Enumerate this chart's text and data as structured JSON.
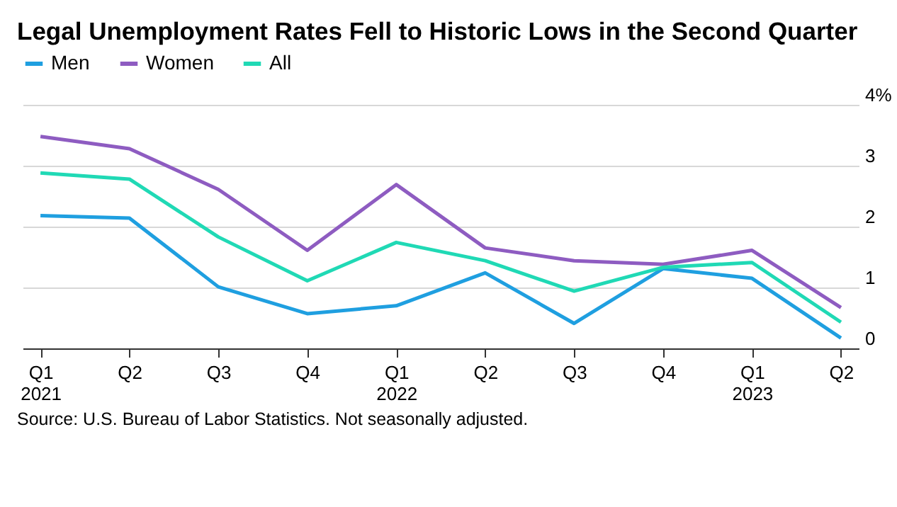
{
  "chart_data": {
    "type": "line",
    "title": "Legal Unemployment Rates Fell to Historic Lows in the Second Quarter",
    "categories": [
      "Q1\n2021",
      "Q2",
      "Q3",
      "Q4",
      "Q1\n2022",
      "Q2",
      "Q3",
      "Q4",
      "Q1\n2023",
      "Q2"
    ],
    "series": [
      {
        "name": "Men",
        "color": "#1f9fe0",
        "values": [
          2.18,
          2.14,
          1.01,
          0.57,
          0.7,
          1.24,
          0.41,
          1.31,
          1.15,
          0.17
        ]
      },
      {
        "name": "Women",
        "color": "#8e5cc1",
        "values": [
          3.48,
          3.28,
          2.61,
          1.61,
          2.69,
          1.65,
          1.44,
          1.38,
          1.61,
          0.67
        ]
      },
      {
        "name": "All",
        "color": "#20d9b5",
        "values": [
          2.88,
          2.78,
          1.83,
          1.11,
          1.74,
          1.44,
          0.94,
          1.33,
          1.41,
          0.43
        ]
      }
    ],
    "ylim": [
      0,
      4
    ],
    "yticks": [
      0,
      1,
      2,
      3,
      {
        "value": 4,
        "label": "4%"
      }
    ],
    "grid": "y",
    "legend": "top left",
    "annotations": [
      "Source: U.S. Bureau of Labor Statistics. Not seasonally adjusted."
    ]
  }
}
